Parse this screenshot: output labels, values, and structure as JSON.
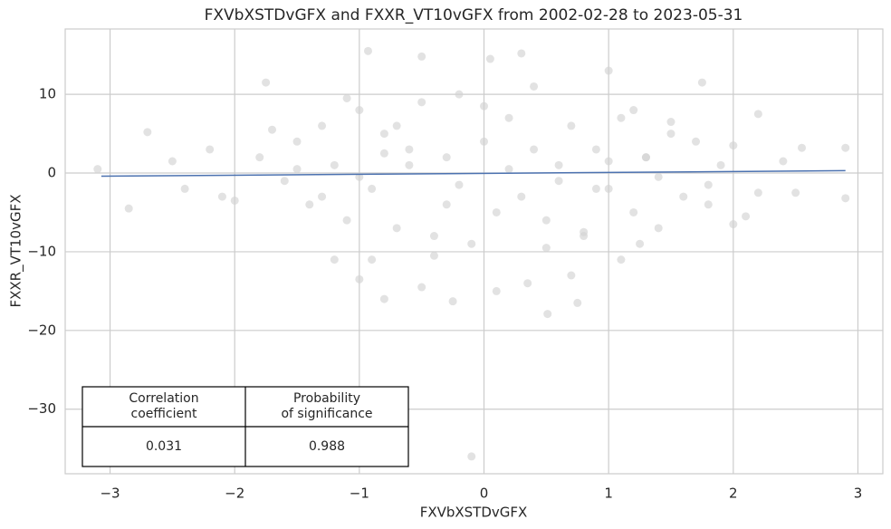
{
  "chart_data": {
    "type": "scatter",
    "title": "FXVbXSTDvGFX and FXXR_VT10vGFX from 2002-02-28 to 2023-05-31",
    "x_label": "FXVbXSTDvGFX",
    "y_label": "FXXR_VT10vGFX",
    "xlim": [
      -3.36,
      3.2
    ],
    "ylim": [
      -38.2,
      18.3
    ],
    "xticks": [
      {
        "value": -3,
        "label": "−3"
      },
      {
        "value": -2,
        "label": "−2"
      },
      {
        "value": -1,
        "label": "−1"
      },
      0,
      1,
      2,
      3
    ],
    "yticks": [
      {
        "value": -30,
        "label": "−30"
      },
      {
        "value": -20,
        "label": "−20"
      },
      {
        "value": -10,
        "label": "−10"
      },
      0,
      10
    ],
    "grid": true,
    "series": [
      {
        "color": "#d3d3d3",
        "x": [
          -0.1,
          0.51,
          0.75,
          -0.93,
          0.3,
          -0.5,
          0.05,
          1.0,
          1.75,
          -1.75,
          2.2,
          2.9,
          2.9,
          -3.1,
          -2.85,
          -2.7,
          -1.0,
          -0.8,
          -0.25,
          0.1,
          0.35,
          -0.5,
          -0.9,
          -1.2,
          0.7,
          1.1,
          1.25,
          2.1,
          2.5,
          2.55,
          -2.5,
          -2.4,
          -2.2,
          -2.0,
          -1.8,
          -1.6,
          -1.5,
          -1.4,
          -1.3,
          -1.2,
          -1.1,
          -1.0,
          -0.9,
          -0.8,
          -0.7,
          -0.6,
          -0.5,
          -0.4,
          -0.3,
          -0.2,
          -0.1,
          0.0,
          0.1,
          0.2,
          0.3,
          0.4,
          0.5,
          0.6,
          0.7,
          0.8,
          0.9,
          1.0,
          1.1,
          1.2,
          1.3,
          1.4,
          1.5,
          1.6,
          1.7,
          1.8,
          1.9,
          2.0,
          2.2,
          2.4,
          -1.5,
          -1.0,
          -0.6,
          -0.2,
          0.2,
          0.6,
          1.0,
          1.4,
          -1.3,
          -0.8,
          -0.3,
          0.4,
          0.9,
          1.3,
          1.8,
          -2.1,
          -1.7,
          -0.4,
          0.0,
          0.5,
          1.5,
          2.0,
          -0.7,
          0.8,
          -1.1,
          1.2
        ],
        "y": [
          -36.0,
          -17.9,
          -16.5,
          15.5,
          15.2,
          14.8,
          14.5,
          13.0,
          11.5,
          11.5,
          7.5,
          3.2,
          -3.2,
          0.5,
          -4.5,
          5.2,
          -13.5,
          -16.0,
          -16.3,
          -15.0,
          -14.0,
          -14.5,
          -11.0,
          -11.0,
          -13.0,
          -11.0,
          -9.0,
          -5.5,
          -2.5,
          3.2,
          1.5,
          -2.0,
          3.0,
          -3.5,
          2.0,
          -1.0,
          4.0,
          -4.0,
          6.0,
          1.0,
          -6.0,
          8.0,
          -2.0,
          5.0,
          -7.0,
          3.0,
          9.0,
          -8.0,
          2.0,
          10.0,
          -9.0,
          4.0,
          -5.0,
          7.0,
          -3.0,
          11.0,
          -6.0,
          1.0,
          6.0,
          -8.0,
          3.0,
          -2.0,
          7.0,
          -5.0,
          2.0,
          -7.0,
          5.0,
          -3.0,
          4.0,
          -4.0,
          1.0,
          3.5,
          -2.5,
          1.5,
          0.5,
          -0.5,
          1.0,
          -1.5,
          0.5,
          -1.0,
          1.5,
          -0.5,
          -3.0,
          2.5,
          -4.0,
          3.0,
          -2.0,
          2.0,
          -1.5,
          -3.0,
          5.5,
          -10.5,
          8.5,
          -9.5,
          6.5,
          -6.5,
          6.0,
          -7.5,
          9.5,
          8.0
        ]
      }
    ],
    "regression_line": {
      "color": "#4c72b0",
      "x": [
        -3.07,
        2.9
      ],
      "y": [
        -0.4,
        0.3
      ]
    },
    "stats_table": {
      "headers": [
        [
          "Correlation",
          "coefficient"
        ],
        [
          "Probability",
          "of significance"
        ]
      ],
      "values": [
        "0.031",
        "0.988"
      ]
    }
  }
}
